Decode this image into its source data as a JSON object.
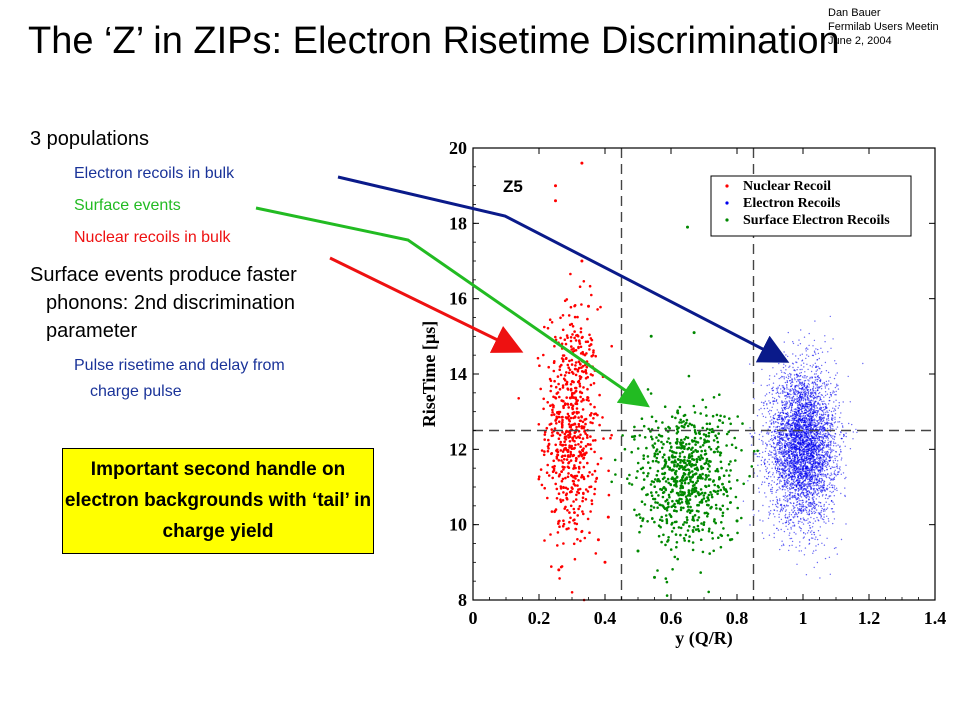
{
  "slide": {
    "title": "The ‘Z’ in ZIPs: Electron Risetime Discrimination",
    "author_lines": [
      "Dan Bauer",
      "Fermilab Users Meetin",
      "June 2, 2004"
    ]
  },
  "bullets": {
    "populations": "3 populations",
    "electron": "Electron recoils in bulk",
    "surface": "Surface events",
    "nuclear": "Nuclear recoils in bulk",
    "phonons": "Surface events produce faster phonons: 2nd discrimination parameter",
    "risetime": "Pulse risetime and delay from charge pulse"
  },
  "callout": {
    "text": "Important second handle on electron backgrounds with ‘tail’ in charge yield"
  },
  "colors": {
    "electron": "#1a3399",
    "surface": "#22bb22",
    "nuclear": "#ee1111",
    "callout_bg": "#ffff00",
    "nuclear_points": "#ff0000",
    "electron_points": "#0000ee",
    "surface_points": "#008800"
  },
  "chart_data": {
    "type": "scatter",
    "label": "Z5",
    "xlabel": "y (Q/R)",
    "ylabel": "RiseTime [µs]",
    "xlim": [
      0,
      1.4
    ],
    "ylim": [
      8,
      20
    ],
    "x_ticks": [
      "0",
      "0.2",
      "0.4",
      "0.6",
      "0.8",
      "1",
      "1.2",
      "1.4"
    ],
    "y_ticks": [
      "8",
      "10",
      "12",
      "14",
      "16",
      "18",
      "20"
    ],
    "grid": false,
    "legend_position": "top-right",
    "dashed_lines": {
      "x": [
        0.45,
        0.85
      ],
      "y": [
        12.5
      ]
    },
    "series": [
      {
        "name": "Nuclear Recoil",
        "color": "#ff0000",
        "marker": "dot",
        "clusters": [
          {
            "x_center": 0.3,
            "x_spread": 0.04,
            "y_center": 12.6,
            "y_spread": 1.6,
            "count": 650
          }
        ],
        "outliers": [
          [
            0.33,
            19.6
          ],
          [
            0.25,
            19.0
          ],
          [
            0.25,
            18.6
          ],
          [
            0.33,
            17.0
          ],
          [
            0.35,
            15.8
          ],
          [
            0.4,
            9.0
          ],
          [
            0.38,
            9.6
          ],
          [
            0.26,
            8.8
          ],
          [
            0.41,
            10.2
          ]
        ]
      },
      {
        "name": "Electron Recoils",
        "color": "#0000ee",
        "marker": "point",
        "clusters": [
          {
            "x_center": 1.0,
            "x_spread": 0.05,
            "y_center": 12.1,
            "y_spread": 1.0,
            "count": 4500
          }
        ],
        "outliers": []
      },
      {
        "name": "Surface Electron Recoils",
        "color": "#008800",
        "marker": "dot",
        "clusters": [
          {
            "x_center": 0.64,
            "x_spread": 0.075,
            "y_center": 11.3,
            "y_spread": 0.9,
            "count": 750
          }
        ],
        "outliers": [
          [
            0.65,
            17.9
          ],
          [
            0.67,
            15.1
          ],
          [
            0.54,
            15.0
          ],
          [
            0.55,
            8.6
          ],
          [
            0.5,
            9.3
          ],
          [
            0.78,
            9.6
          ],
          [
            0.8,
            10.1
          ]
        ]
      }
    ]
  }
}
